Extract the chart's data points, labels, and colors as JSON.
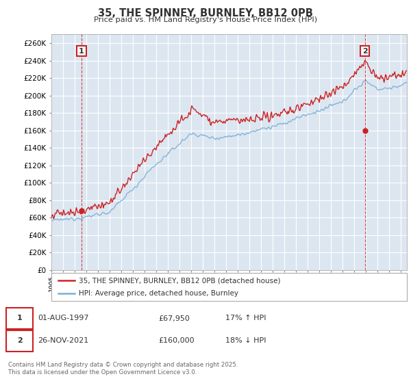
{
  "title": "35, THE SPINNEY, BURNLEY, BB12 0PB",
  "subtitle": "Price paid vs. HM Land Registry's House Price Index (HPI)",
  "ylim": [
    0,
    270000
  ],
  "yticks": [
    0,
    20000,
    40000,
    60000,
    80000,
    100000,
    120000,
    140000,
    160000,
    180000,
    200000,
    220000,
    240000,
    260000
  ],
  "xlim": [
    1995,
    2025.5
  ],
  "background_color": "#dce6f1",
  "plot_bg_color": "#dce6f1",
  "grid_color": "#ffffff",
  "sale1_x": 1997.58,
  "sale1_price": 67950,
  "sale2_x": 2021.9,
  "sale2_price": 160000,
  "legend_entry1": "35, THE SPINNEY, BURNLEY, BB12 0PB (detached house)",
  "legend_entry2": "HPI: Average price, detached house, Burnley",
  "table_row1": [
    "1",
    "01-AUG-1997",
    "£67,950",
    "17% ↑ HPI"
  ],
  "table_row2": [
    "2",
    "26-NOV-2021",
    "£160,000",
    "18% ↓ HPI"
  ],
  "footer": "Contains HM Land Registry data © Crown copyright and database right 2025.\nThis data is licensed under the Open Government Licence v3.0.",
  "hpi_color": "#7bafd4",
  "price_color": "#cc2222",
  "vline_color": "#cc2222",
  "marker_color": "#cc2222",
  "legend_bg": "#ffffff",
  "legend_edge": "#aaaaaa"
}
